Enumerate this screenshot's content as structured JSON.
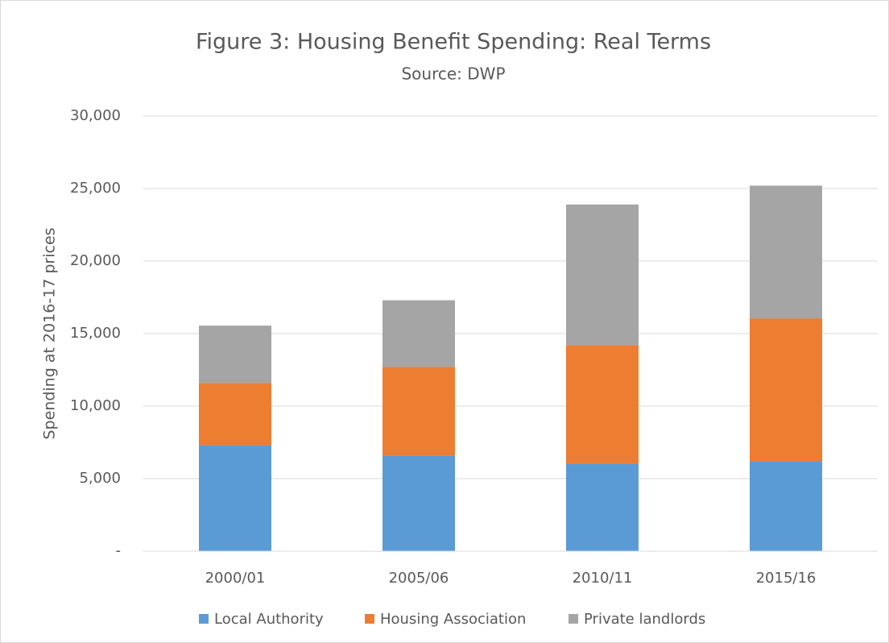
{
  "chart_data": {
    "type": "bar",
    "stacked": true,
    "title": "Figure 3: Housing Benefit Spending: Real Terms",
    "subtitle": "Source: DWP",
    "y_label": "Spending  at 2016-17 prices",
    "categories": [
      "2000/01",
      "2005/06",
      "2010/11",
      "2015/16"
    ],
    "series": [
      {
        "name": "Local Authority",
        "color": "#5b9bd5",
        "values": [
          7300,
          6600,
          6050,
          6200
        ]
      },
      {
        "name": "Housing Association",
        "color": "#ed7d31",
        "values": [
          4300,
          6100,
          8150,
          9850
        ]
      },
      {
        "name": "Private landlords",
        "color": "#a5a5a5",
        "values": [
          3950,
          4600,
          9700,
          9150
        ]
      }
    ],
    "ylim": [
      0,
      30000
    ],
    "yticks": [
      {
        "value": 0,
        "label": "-"
      },
      {
        "value": 5000,
        "label": "5,000"
      },
      {
        "value": 10000,
        "label": "10,000"
      },
      {
        "value": 15000,
        "label": "15,000"
      },
      {
        "value": 20000,
        "label": "20,000"
      },
      {
        "value": 25000,
        "label": "25,000"
      },
      {
        "value": 30000,
        "label": "30,000"
      }
    ],
    "grid": true,
    "legend": "bottom"
  }
}
